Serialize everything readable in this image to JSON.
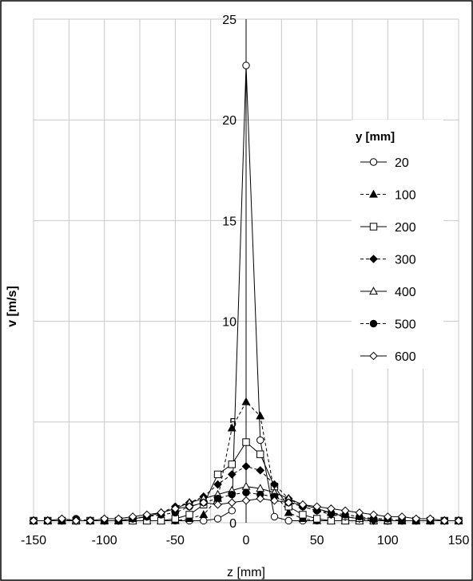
{
  "chart_data": {
    "type": "line",
    "xlabel": "z [mm]",
    "ylabel": "v [m/s]",
    "xlim": [
      -150,
      150
    ],
    "ylim": [
      0,
      25
    ],
    "xticks": [
      -150,
      -100,
      -50,
      0,
      50,
      100,
      150
    ],
    "yticks": [
      0,
      5,
      10,
      15,
      20,
      25
    ],
    "grid": true,
    "legend_title": "y [mm]",
    "legend_position": "right",
    "series": [
      {
        "name": "20",
        "marker": "circle-open",
        "dash": "solid",
        "x": [
          -150,
          -140,
          -130,
          -120,
          -110,
          -100,
          -90,
          -80,
          -70,
          -60,
          -50,
          -40,
          -30,
          -20,
          -10,
          0,
          10,
          20,
          30,
          40,
          50,
          60,
          70,
          80,
          90,
          100,
          110,
          120,
          130,
          140,
          150
        ],
        "y": [
          0.1,
          0.1,
          0.1,
          0.1,
          0.1,
          0.1,
          0.1,
          0.1,
          0.1,
          0.1,
          0.1,
          0.1,
          0.1,
          0.2,
          0.6,
          22.7,
          4.1,
          0.3,
          0.1,
          0.1,
          0.1,
          0.1,
          0.1,
          0.1,
          0.1,
          0.1,
          0.1,
          0.1,
          0.1,
          0.1,
          0.1
        ]
      },
      {
        "name": "100",
        "marker": "triangle-filled",
        "dash": "dashed",
        "x": [
          -150,
          -140,
          -130,
          -120,
          -110,
          -100,
          -90,
          -80,
          -70,
          -60,
          -50,
          -40,
          -30,
          -20,
          -10,
          0,
          10,
          20,
          30,
          40,
          50,
          60,
          70,
          80,
          90,
          100,
          110,
          120,
          130,
          140,
          150
        ],
        "y": [
          0.1,
          0.1,
          0.1,
          0.1,
          0.1,
          0.1,
          0.1,
          0.1,
          0.1,
          0.1,
          0.1,
          0.2,
          0.4,
          1.2,
          4.7,
          6.0,
          5.3,
          1.5,
          0.5,
          0.2,
          0.1,
          0.1,
          0.1,
          0.1,
          0.1,
          0.1,
          0.1,
          0.1,
          0.1,
          0.1,
          0.1
        ]
      },
      {
        "name": "200",
        "marker": "square-open",
        "dash": "solid",
        "x": [
          -150,
          -140,
          -130,
          -120,
          -110,
          -100,
          -90,
          -80,
          -70,
          -60,
          -50,
          -40,
          -30,
          -20,
          -10,
          0,
          10,
          20,
          30,
          40,
          50,
          60,
          70,
          80,
          90,
          100,
          110,
          120,
          130,
          140,
          150
        ],
        "y": [
          0.1,
          0.1,
          0.1,
          0.1,
          0.1,
          0.1,
          0.1,
          0.1,
          0.1,
          0.1,
          0.2,
          0.4,
          0.9,
          2.4,
          2.9,
          4.0,
          3.4,
          1.8,
          0.8,
          0.4,
          0.2,
          0.1,
          0.1,
          0.1,
          0.1,
          0.1,
          0.1,
          0.1,
          0.1,
          0.1,
          0.1
        ]
      },
      {
        "name": "300",
        "marker": "diamond-filled",
        "dash": "dashed",
        "x": [
          -150,
          -140,
          -130,
          -120,
          -110,
          -100,
          -90,
          -80,
          -70,
          -60,
          -50,
          -40,
          -30,
          -20,
          -10,
          0,
          10,
          20,
          30,
          40,
          50,
          60,
          70,
          80,
          90,
          100,
          110,
          120,
          130,
          140,
          150
        ],
        "y": [
          0.1,
          0.1,
          0.1,
          0.1,
          0.1,
          0.1,
          0.1,
          0.2,
          0.3,
          0.5,
          0.8,
          1.0,
          1.3,
          1.9,
          2.4,
          2.8,
          2.6,
          1.9,
          1.2,
          0.8,
          0.6,
          0.4,
          0.3,
          0.2,
          0.1,
          0.1,
          0.1,
          0.1,
          0.1,
          0.1,
          0.1
        ]
      },
      {
        "name": "400",
        "marker": "triangle-open",
        "dash": "solid",
        "x": [
          -150,
          -140,
          -130,
          -120,
          -110,
          -100,
          -90,
          -80,
          -70,
          -60,
          -50,
          -40,
          -30,
          -20,
          -10,
          0,
          10,
          20,
          30,
          40,
          50,
          60,
          70,
          80,
          90,
          100,
          110,
          120,
          130,
          140,
          150
        ],
        "y": [
          0.1,
          0.1,
          0.1,
          0.1,
          0.1,
          0.1,
          0.1,
          0.2,
          0.3,
          0.5,
          0.7,
          1.0,
          1.2,
          1.4,
          1.6,
          1.8,
          1.7,
          1.5,
          1.2,
          0.9,
          0.7,
          0.5,
          0.3,
          0.2,
          0.2,
          0.1,
          0.1,
          0.1,
          0.1,
          0.1,
          0.1
        ]
      },
      {
        "name": "500",
        "marker": "circle-filled",
        "dash": "dashed",
        "x": [
          -150,
          -140,
          -130,
          -120,
          -110,
          -100,
          -90,
          -80,
          -70,
          -60,
          -50,
          -40,
          -30,
          -20,
          -10,
          0,
          10,
          20,
          30,
          40,
          50,
          60,
          70,
          80,
          90,
          100,
          110,
          120,
          130,
          140,
          150
        ],
        "y": [
          0.1,
          0.1,
          0.1,
          0.2,
          0.1,
          0.1,
          0.1,
          0.2,
          0.3,
          0.4,
          0.5,
          0.8,
          1.0,
          1.2,
          1.4,
          1.5,
          1.4,
          1.3,
          1.0,
          0.8,
          0.6,
          0.5,
          0.4,
          0.3,
          0.2,
          0.2,
          0.1,
          0.1,
          0.1,
          0.1,
          0.1
        ]
      },
      {
        "name": "600",
        "marker": "diamond-open",
        "dash": "solid",
        "x": [
          -150,
          -140,
          -130,
          -120,
          -110,
          -100,
          -90,
          -80,
          -70,
          -60,
          -50,
          -40,
          -30,
          -20,
          -10,
          0,
          10,
          20,
          30,
          40,
          50,
          60,
          70,
          80,
          90,
          100,
          110,
          120,
          130,
          140,
          150
        ],
        "y": [
          0.1,
          0.1,
          0.2,
          0.1,
          0.1,
          0.2,
          0.2,
          0.3,
          0.4,
          0.5,
          0.7,
          0.8,
          1.0,
          0.9,
          1.0,
          1.1,
          1.2,
          1.1,
          1.0,
          0.9,
          0.8,
          0.7,
          0.6,
          0.5,
          0.4,
          0.3,
          0.3,
          0.2,
          0.2,
          0.1,
          0.1
        ]
      }
    ]
  }
}
